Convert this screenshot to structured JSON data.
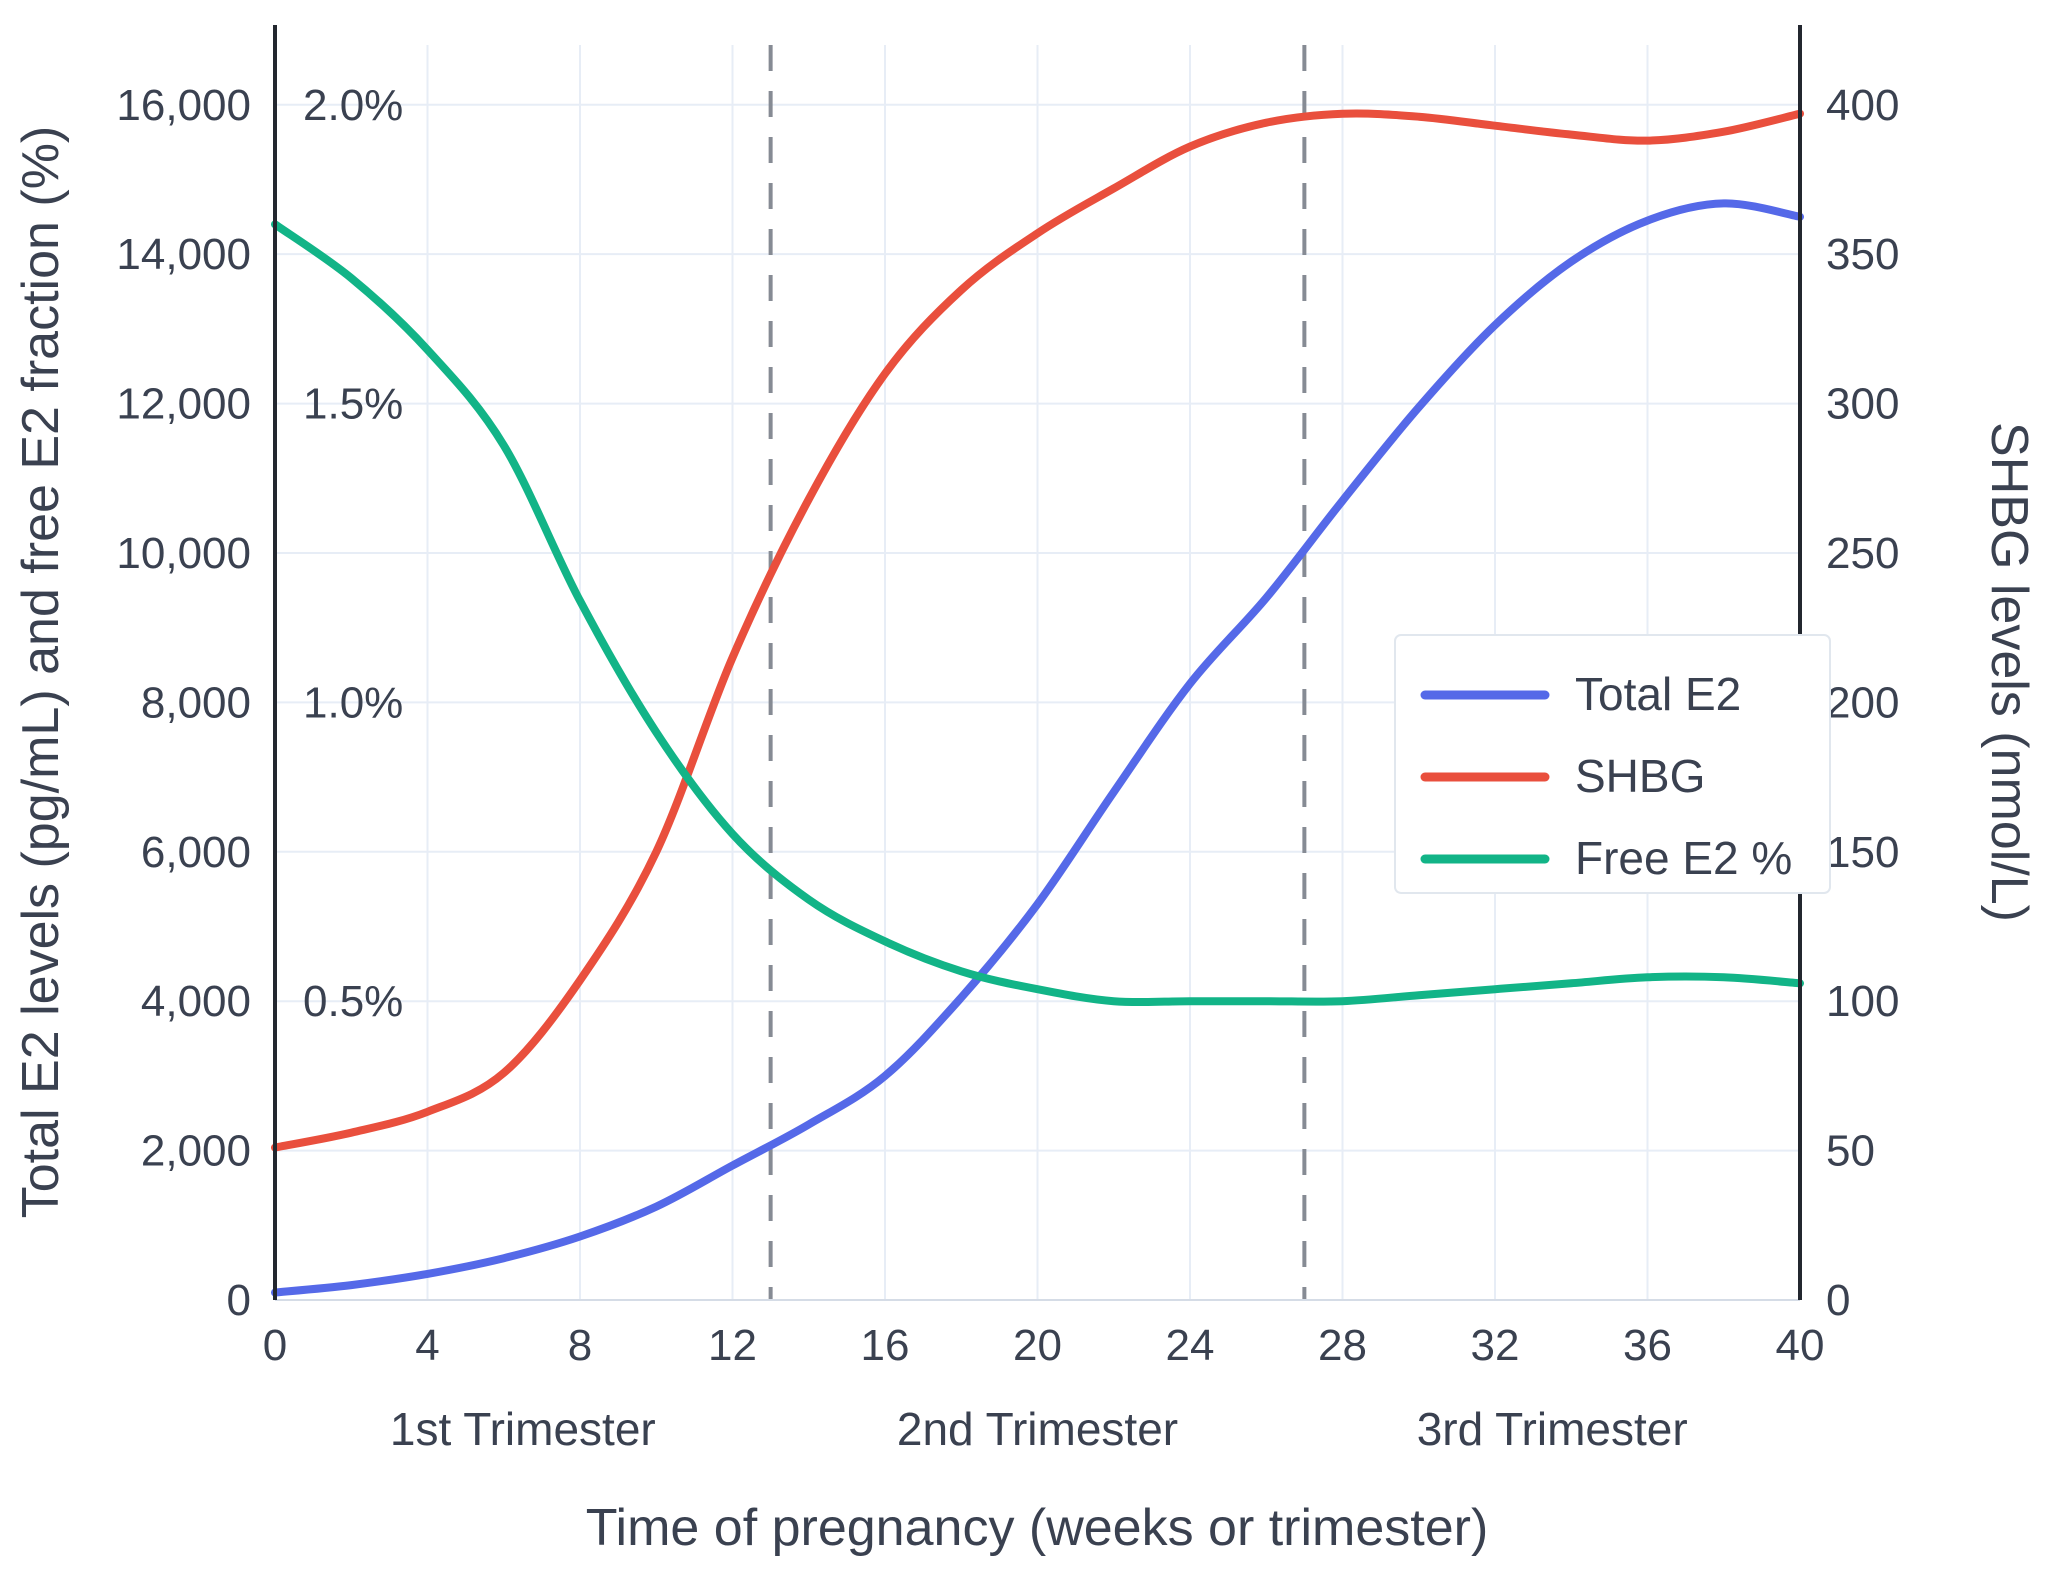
{
  "chart_data": {
    "type": "line",
    "x_label": "Time of pregnancy (weeks or trimester)",
    "y_left_label": "Total E2 levels (pg/mL) and free E2 fraction (%)",
    "y_right_label": "SHBG levels (nmol/L)",
    "x_range": [
      0,
      40
    ],
    "x_ticks": [
      0,
      4,
      8,
      12,
      16,
      20,
      24,
      28,
      32,
      36,
      40
    ],
    "y_left_range": [
      0,
      16800
    ],
    "y_left_ticks": [
      0,
      2000,
      4000,
      6000,
      8000,
      10000,
      12000,
      14000,
      16000
    ],
    "y_right_range": [
      0,
      420
    ],
    "y_right_ticks": [
      0,
      50,
      100,
      150,
      200,
      250,
      300,
      350,
      400
    ],
    "percent_ticks": [
      {
        "label": "0.5%",
        "value": 4000
      },
      {
        "label": "1.0%",
        "value": 8000
      },
      {
        "label": "1.5%",
        "value": 12000
      },
      {
        "label": "2.0%",
        "value": 16000
      }
    ],
    "trimester_lines": [
      13,
      27
    ],
    "trimester_labels": [
      {
        "label": "1st Trimester",
        "center_week": 6.5
      },
      {
        "label": "2nd Trimester",
        "center_week": 20
      },
      {
        "label": "3rd Trimester",
        "center_week": 33.5
      }
    ],
    "x": [
      0,
      2,
      4,
      6,
      8,
      10,
      12,
      14,
      16,
      18,
      20,
      22,
      24,
      26,
      28,
      30,
      32,
      34,
      36,
      38,
      40
    ],
    "series": [
      {
        "name": "Total E2",
        "axis": "left",
        "unit": "pg/mL",
        "color": "#5569e8",
        "values": [
          100,
          200,
          350,
          560,
          850,
          1250,
          1800,
          2350,
          3000,
          4050,
          5300,
          6800,
          8250,
          9400,
          10700,
          11950,
          13050,
          13900,
          14450,
          14680,
          14500
        ]
      },
      {
        "name": "SHBG",
        "axis": "right",
        "unit": "nmol/L",
        "color": "#e94f3d",
        "values": [
          51,
          56,
          63,
          76,
          107,
          150,
          215,
          268,
          310,
          338,
          357,
          372,
          386,
          394,
          397,
          396,
          393,
          390,
          388,
          391,
          397
        ]
      },
      {
        "name": "Free E2 %",
        "axis": "percent",
        "unit": "%",
        "color": "#12b487",
        "values": [
          1.8,
          1.71,
          1.59,
          1.43,
          1.17,
          0.95,
          0.78,
          0.67,
          0.6,
          0.55,
          0.52,
          0.5,
          0.5,
          0.5,
          0.5,
          0.51,
          0.52,
          0.53,
          0.54,
          0.54,
          0.53
        ]
      }
    ],
    "legend": {
      "entries": [
        "Total E2",
        "SHBG",
        "Free E2 %"
      ],
      "position": "right-center"
    },
    "grid": true
  },
  "colors": {
    "grid_line": "#e7edf6",
    "spine": "#23272f",
    "bottom_line": "#d5dce6",
    "dashed_divider": "#868b94",
    "tick_text": "#3a4150",
    "legend_border": "#e1e7ee",
    "legend_bg": "#ffffff"
  }
}
